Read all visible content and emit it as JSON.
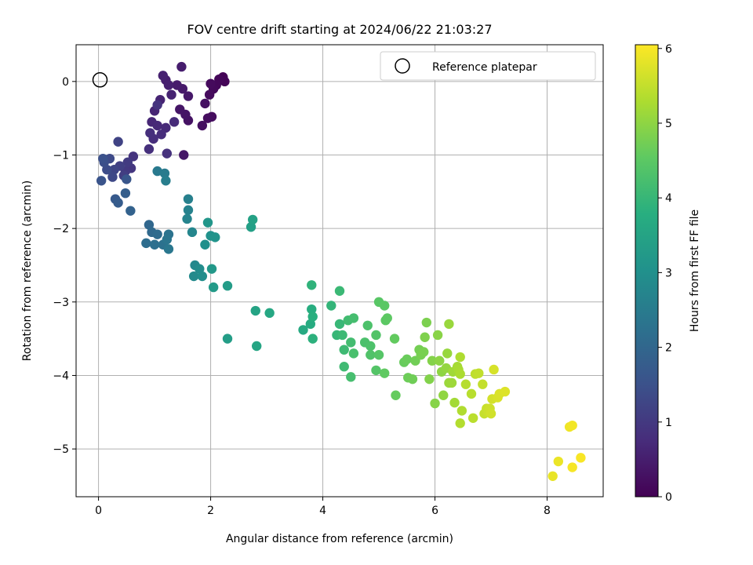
{
  "chart_data": {
    "type": "scatter",
    "title": "FOV centre drift starting at 2024/06/22 21:03:27",
    "xlabel": "Angular distance from reference (arcmin)",
    "ylabel": "Rotation from reference (arcmin)",
    "xlim": [
      -0.4,
      9.0
    ],
    "ylim": [
      -5.65,
      0.5
    ],
    "xticks": [
      0,
      2,
      4,
      6,
      8
    ],
    "yticks": [
      0,
      -1,
      -2,
      -3,
      -4,
      -5
    ],
    "grid": true,
    "legend": {
      "position": "top-right",
      "entries": [
        "Reference platepar"
      ]
    },
    "reference_point": [
      0,
      0
    ],
    "colorbar": {
      "label": "Hours from first FF file",
      "range": [
        0,
        6.05
      ],
      "ticks": [
        0,
        1,
        2,
        3,
        4,
        5,
        6
      ],
      "colormap": "viridis"
    },
    "points": [
      [
        2.22,
        0.06,
        0.02
      ],
      [
        2.25,
        0.0,
        0.05
      ],
      [
        2.15,
        0.03,
        0.08
      ],
      [
        2.1,
        -0.05,
        0.1
      ],
      [
        2.05,
        -0.1,
        0.12
      ],
      [
        2.0,
        -0.03,
        0.15
      ],
      [
        1.98,
        -0.18,
        0.18
      ],
      [
        2.02,
        -0.48,
        0.2
      ],
      [
        1.95,
        -0.5,
        0.22
      ],
      [
        1.85,
        -0.6,
        0.25
      ],
      [
        1.9,
        -0.3,
        0.28
      ],
      [
        1.6,
        -0.53,
        0.3
      ],
      [
        1.55,
        -0.45,
        0.32
      ],
      [
        1.45,
        -0.38,
        0.35
      ],
      [
        1.52,
        -1.0,
        0.37
      ],
      [
        1.6,
        -0.2,
        0.4
      ],
      [
        1.5,
        -0.1,
        0.42
      ],
      [
        1.4,
        -0.05,
        0.45
      ],
      [
        1.48,
        0.2,
        0.48
      ],
      [
        1.2,
        0.02,
        0.5
      ],
      [
        1.25,
        -0.05,
        0.52
      ],
      [
        1.15,
        0.08,
        0.55
      ],
      [
        1.3,
        -0.18,
        0.58
      ],
      [
        1.1,
        -0.25,
        0.6
      ],
      [
        1.0,
        -0.4,
        0.62
      ],
      [
        0.95,
        -0.55,
        0.65
      ],
      [
        1.05,
        -0.6,
        0.68
      ],
      [
        1.2,
        -0.63,
        0.7
      ],
      [
        1.35,
        -0.55,
        0.72
      ],
      [
        1.12,
        -0.72,
        0.75
      ],
      [
        0.98,
        -0.78,
        0.78
      ],
      [
        0.92,
        -0.7,
        0.8
      ],
      [
        0.9,
        -0.92,
        0.82
      ],
      [
        1.22,
        -0.98,
        0.85
      ],
      [
        1.05,
        -0.32,
        0.88
      ],
      [
        0.62,
        -1.02,
        0.9
      ],
      [
        0.58,
        -1.18,
        0.95
      ],
      [
        0.48,
        -1.22,
        1.0
      ],
      [
        0.52,
        -1.1,
        1.05
      ],
      [
        0.45,
        -1.28,
        1.1
      ],
      [
        0.38,
        -1.15,
        1.15
      ],
      [
        0.35,
        -0.82,
        1.2
      ],
      [
        0.28,
        -1.2,
        1.25
      ],
      [
        0.25,
        -1.3,
        1.3
      ],
      [
        0.2,
        -1.05,
        1.35
      ],
      [
        0.15,
        -1.2,
        1.4
      ],
      [
        0.1,
        -1.1,
        1.45
      ],
      [
        0.08,
        -1.05,
        1.5
      ],
      [
        0.05,
        -1.35,
        1.55
      ],
      [
        0.5,
        -1.33,
        1.6
      ],
      [
        0.3,
        -1.6,
        1.7
      ],
      [
        0.35,
        -1.65,
        1.75
      ],
      [
        0.48,
        -1.52,
        1.8
      ],
      [
        0.57,
        -1.76,
        1.9
      ],
      [
        0.9,
        -1.95,
        2.0
      ],
      [
        0.95,
        -2.05,
        2.05
      ],
      [
        1.05,
        -2.08,
        2.1
      ],
      [
        0.85,
        -2.2,
        2.15
      ],
      [
        1.0,
        -2.22,
        2.2
      ],
      [
        1.15,
        -2.22,
        2.25
      ],
      [
        1.25,
        -2.08,
        2.3
      ],
      [
        1.22,
        -2.15,
        2.35
      ],
      [
        1.25,
        -2.28,
        2.4
      ],
      [
        1.05,
        -1.22,
        2.45
      ],
      [
        1.18,
        -1.25,
        2.5
      ],
      [
        1.2,
        -1.35,
        2.55
      ],
      [
        1.6,
        -1.6,
        2.6
      ],
      [
        1.6,
        -1.75,
        2.65
      ],
      [
        1.58,
        -1.87,
        2.7
      ],
      [
        1.67,
        -2.05,
        2.75
      ],
      [
        1.72,
        -2.5,
        2.8
      ],
      [
        1.7,
        -2.65,
        2.85
      ],
      [
        1.8,
        -2.55,
        2.9
      ],
      [
        1.85,
        -2.65,
        2.95
      ],
      [
        1.9,
        -2.22,
        3.0
      ],
      [
        2.0,
        -2.1,
        3.05
      ],
      [
        2.08,
        -2.12,
        3.1
      ],
      [
        1.95,
        -1.92,
        3.15
      ],
      [
        2.02,
        -2.55,
        3.2
      ],
      [
        2.05,
        -2.8,
        3.25
      ],
      [
        2.3,
        -2.78,
        3.3
      ],
      [
        2.3,
        -3.5,
        3.35
      ],
      [
        2.72,
        -1.98,
        3.4
      ],
      [
        2.75,
        -1.88,
        3.45
      ],
      [
        2.8,
        -3.12,
        3.5
      ],
      [
        2.82,
        -3.6,
        3.55
      ],
      [
        3.05,
        -3.15,
        3.6
      ],
      [
        3.65,
        -3.38,
        3.65
      ],
      [
        3.78,
        -3.3,
        3.7
      ],
      [
        3.8,
        -3.1,
        3.75
      ],
      [
        3.82,
        -3.2,
        3.8
      ],
      [
        3.82,
        -3.5,
        3.85
      ],
      [
        3.8,
        -2.77,
        3.9
      ],
      [
        4.15,
        -3.05,
        3.95
      ],
      [
        4.25,
        -3.45,
        4.0
      ],
      [
        4.3,
        -3.3,
        4.02
      ],
      [
        4.3,
        -2.85,
        4.05
      ],
      [
        4.35,
        -3.45,
        4.08
      ],
      [
        4.38,
        -3.65,
        4.1
      ],
      [
        4.38,
        -3.88,
        4.12
      ],
      [
        4.45,
        -3.25,
        4.15
      ],
      [
        4.5,
        -3.55,
        4.18
      ],
      [
        4.55,
        -3.22,
        4.2
      ],
      [
        4.5,
        -4.02,
        4.22
      ],
      [
        4.55,
        -3.7,
        4.25
      ],
      [
        4.75,
        -3.55,
        4.28
      ],
      [
        4.8,
        -3.32,
        4.3
      ],
      [
        4.85,
        -3.6,
        4.32
      ],
      [
        4.85,
        -3.72,
        4.35
      ],
      [
        4.95,
        -3.45,
        4.38
      ],
      [
        4.95,
        -3.93,
        4.4
      ],
      [
        5.0,
        -3.72,
        4.42
      ],
      [
        5.0,
        -3.0,
        4.45
      ],
      [
        5.1,
        -3.05,
        4.48
      ],
      [
        5.12,
        -3.25,
        4.5
      ],
      [
        5.15,
        -3.22,
        4.52
      ],
      [
        5.1,
        -3.97,
        4.55
      ],
      [
        5.28,
        -3.5,
        4.58
      ],
      [
        5.3,
        -4.27,
        4.6
      ],
      [
        5.45,
        -3.82,
        4.62
      ],
      [
        5.5,
        -3.78,
        4.65
      ],
      [
        5.52,
        -4.03,
        4.68
      ],
      [
        5.6,
        -4.05,
        4.7
      ],
      [
        5.65,
        -3.8,
        4.72
      ],
      [
        5.72,
        -3.65,
        4.75
      ],
      [
        5.75,
        -3.72,
        4.78
      ],
      [
        5.8,
        -3.68,
        4.8
      ],
      [
        5.85,
        -3.28,
        4.82
      ],
      [
        5.82,
        -3.48,
        4.85
      ],
      [
        5.9,
        -4.05,
        4.88
      ],
      [
        5.95,
        -3.8,
        4.9
      ],
      [
        6.0,
        -4.38,
        4.92
      ],
      [
        6.05,
        -3.45,
        4.95
      ],
      [
        6.08,
        -3.8,
        4.98
      ],
      [
        6.12,
        -3.95,
        5.0
      ],
      [
        6.15,
        -4.27,
        5.02
      ],
      [
        6.2,
        -3.9,
        5.05
      ],
      [
        6.22,
        -3.7,
        5.08
      ],
      [
        6.25,
        -3.3,
        5.1
      ],
      [
        6.25,
        -4.1,
        5.12
      ],
      [
        6.3,
        -4.1,
        5.15
      ],
      [
        6.32,
        -3.95,
        5.18
      ],
      [
        6.35,
        -4.37,
        5.2
      ],
      [
        6.4,
        -3.88,
        5.22
      ],
      [
        6.42,
        -3.92,
        5.25
      ],
      [
        6.45,
        -3.98,
        5.28
      ],
      [
        6.45,
        -3.75,
        5.3
      ],
      [
        6.48,
        -4.48,
        5.32
      ],
      [
        6.45,
        -4.65,
        5.35
      ],
      [
        6.55,
        -4.12,
        5.38
      ],
      [
        6.65,
        -4.25,
        5.4
      ],
      [
        6.68,
        -4.58,
        5.42
      ],
      [
        6.72,
        -3.98,
        5.45
      ],
      [
        6.78,
        -3.97,
        5.48
      ],
      [
        6.85,
        -4.12,
        5.5
      ],
      [
        6.88,
        -4.52,
        5.52
      ],
      [
        6.92,
        -4.45,
        5.55
      ],
      [
        6.95,
        -4.5,
        5.58
      ],
      [
        6.98,
        -4.45,
        5.6
      ],
      [
        7.0,
        -4.52,
        5.62
      ],
      [
        7.02,
        -4.32,
        5.65
      ],
      [
        7.05,
        -3.92,
        5.68
      ],
      [
        7.12,
        -4.3,
        5.7
      ],
      [
        7.15,
        -4.25,
        5.72
      ],
      [
        7.25,
        -4.22,
        5.75
      ],
      [
        8.1,
        -5.37,
        5.85
      ],
      [
        8.2,
        -5.17,
        5.88
      ],
      [
        8.4,
        -4.7,
        5.92
      ],
      [
        8.45,
        -4.68,
        5.95
      ],
      [
        8.45,
        -5.25,
        5.98
      ],
      [
        8.6,
        -5.12,
        6.0
      ]
    ]
  }
}
